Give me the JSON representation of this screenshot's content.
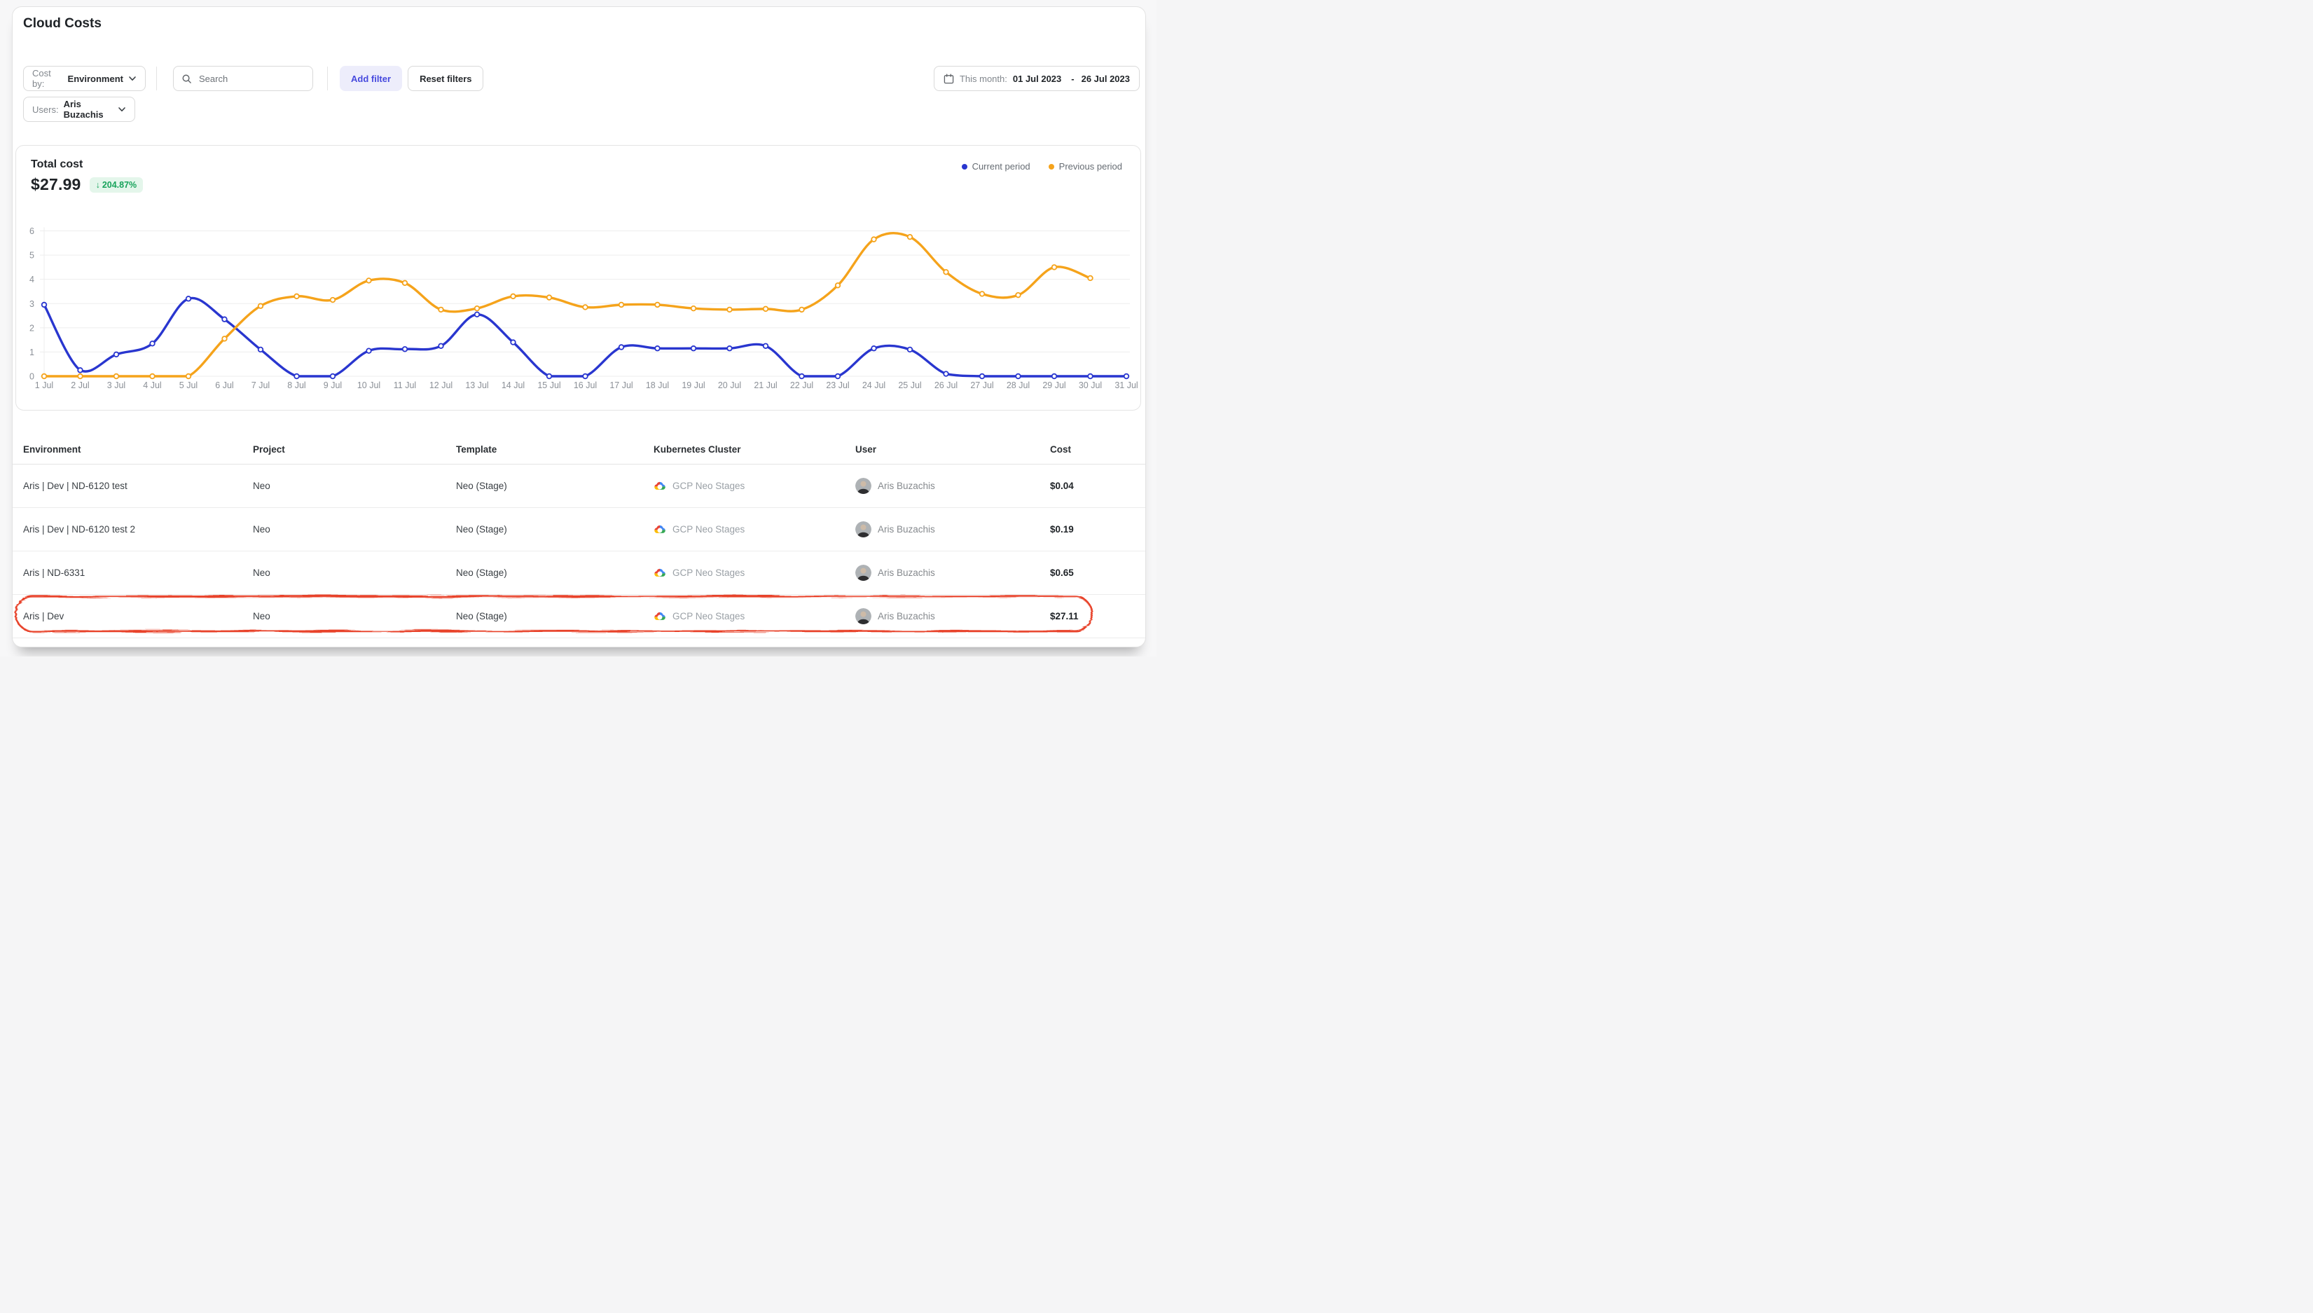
{
  "page": {
    "title": "Cloud Costs"
  },
  "filters": {
    "cost_by_label": "Cost by:",
    "cost_by_value": "Environment",
    "search_placeholder": "Search",
    "add_filter_label": "Add filter",
    "reset_filters_label": "Reset filters",
    "date_label": "This month:",
    "date_start": "01 Jul 2023",
    "date_separator": "-",
    "date_end": "26 Jul 2023",
    "users_label": "Users:",
    "users_value": "Aris Buzachis"
  },
  "summary": {
    "label": "Total cost",
    "value": "$27.99",
    "delta_arrow": "↓",
    "delta": "204.87%"
  },
  "legend": [
    {
      "label": "Current period",
      "color": "#2936cf"
    },
    {
      "label": "Previous period",
      "color": "#f5a31b"
    }
  ],
  "chart_data": {
    "type": "line",
    "x": [
      "1 Jul",
      "2 Jul",
      "3 Jul",
      "4 Jul",
      "5 Jul",
      "6 Jul",
      "7 Jul",
      "8 Jul",
      "9 Jul",
      "10 Jul",
      "11 Jul",
      "12 Jul",
      "13 Jul",
      "14 Jul",
      "15 Jul",
      "16 Jul",
      "17 Jul",
      "18 Jul",
      "19 Jul",
      "20 Jul",
      "21 Jul",
      "22 Jul",
      "23 Jul",
      "24 Jul",
      "25 Jul",
      "26 Jul",
      "27 Jul",
      "28 Jul",
      "29 Jul",
      "30 Jul",
      "31 Jul"
    ],
    "series": [
      {
        "name": "Current period",
        "color": "#2936cf",
        "values": [
          2.95,
          0.25,
          0.9,
          1.35,
          3.2,
          2.35,
          1.1,
          0,
          0,
          1.05,
          1.12,
          1.25,
          2.55,
          1.4,
          0,
          0,
          1.2,
          1.15,
          1.15,
          1.15,
          1.25,
          0,
          0,
          1.15,
          1.1,
          0.1,
          0,
          0,
          0,
          0,
          0
        ]
      },
      {
        "name": "Previous period",
        "color": "#f5a31b",
        "values": [
          0,
          0,
          0,
          0,
          0,
          1.55,
          2.9,
          3.3,
          3.15,
          3.95,
          3.85,
          2.75,
          2.8,
          3.3,
          3.25,
          2.85,
          2.95,
          2.95,
          2.8,
          2.75,
          2.78,
          2.75,
          3.75,
          5.65,
          5.75,
          4.3,
          3.4,
          3.35,
          4.5,
          4.05,
          null
        ]
      }
    ],
    "ylim": [
      0,
      6
    ],
    "yticks": [
      0,
      1,
      2,
      3,
      4,
      5,
      6
    ],
    "grid": true,
    "legend_position": "top-right",
    "title": "Total cost",
    "xlabel": "",
    "ylabel": ""
  },
  "table": {
    "columns": [
      "Environment",
      "Project",
      "Template",
      "Kubernetes Cluster",
      "User",
      "Cost"
    ],
    "rows": [
      {
        "environment": "Aris | Dev | ND-6120 test",
        "project": "Neo",
        "template": "Neo (Stage)",
        "cluster": "GCP Neo Stages",
        "user": "Aris Buzachis",
        "cost": "$0.04",
        "highlighted": false
      },
      {
        "environment": "Aris | Dev | ND-6120 test 2",
        "project": "Neo",
        "template": "Neo (Stage)",
        "cluster": "GCP Neo Stages",
        "user": "Aris Buzachis",
        "cost": "$0.19",
        "highlighted": false
      },
      {
        "environment": "Aris | ND-6331",
        "project": "Neo",
        "template": "Neo (Stage)",
        "cluster": "GCP Neo Stages",
        "user": "Aris Buzachis",
        "cost": "$0.65",
        "highlighted": false
      },
      {
        "environment": "Aris | Dev",
        "project": "Neo",
        "template": "Neo (Stage)",
        "cluster": "GCP Neo Stages",
        "user": "Aris Buzachis",
        "cost": "$27.11",
        "highlighted": true
      }
    ]
  },
  "colors": {
    "current_period": "#2936cf",
    "previous_period": "#f5a31b",
    "badge_green_text": "#18a35b",
    "badge_green_bg": "#e4f6eb",
    "annotation_red": "#e8432a",
    "accent_blue": "#4649de",
    "grid_line": "#ededed",
    "axis_text": "#8b9097"
  }
}
